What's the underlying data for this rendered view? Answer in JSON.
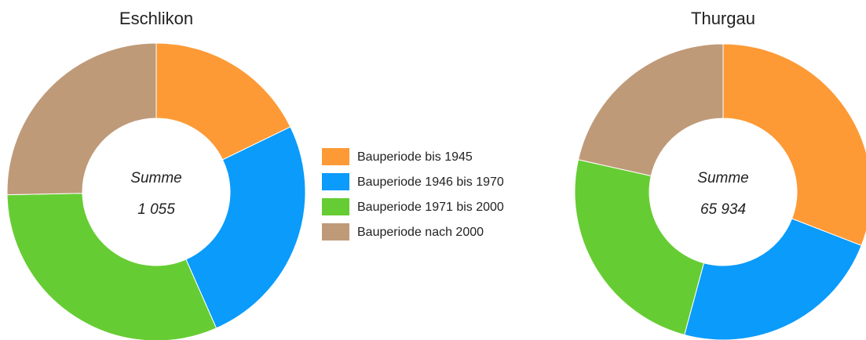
{
  "chart_data": [
    {
      "type": "pie",
      "title": "Eschlikon",
      "annotations": [
        "Summe",
        "1 055"
      ],
      "categories": [
        "Bauperiode bis 1945",
        "Bauperiode 1946 bis 1970",
        "Bauperiode 1971 bis 2000",
        "Bauperiode nach 2000"
      ],
      "values": [
        17.8,
        25.6,
        31.3,
        25.3
      ],
      "colors": [
        "#fd9a36",
        "#0a9bfb",
        "#66cc33",
        "#bf9a78"
      ]
    },
    {
      "type": "pie",
      "title": "Thurgau",
      "annotations": [
        "Summe",
        "65 934"
      ],
      "categories": [
        "Bauperiode bis 1945",
        "Bauperiode 1946 bis 1970",
        "Bauperiode 1971 bis 2000",
        "Bauperiode nach 2000"
      ],
      "values": [
        30.9,
        23.3,
        24.3,
        21.5
      ],
      "colors": [
        "#fd9a36",
        "#0a9bfb",
        "#66cc33",
        "#bf9a78"
      ]
    }
  ]
}
